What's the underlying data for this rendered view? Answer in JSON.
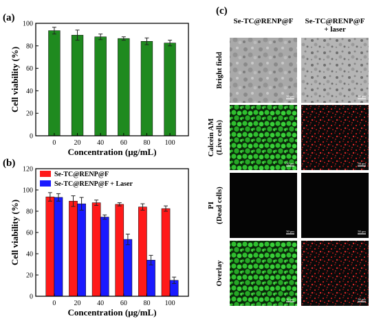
{
  "chart_data": [
    {
      "panel_label": "(a)",
      "type": "bar",
      "xlabel": "Concentration (μg/mL)",
      "ylabel": "Cell viability (%)",
      "ylim": [
        0,
        100
      ],
      "yticks": [
        "0",
        "20",
        "40",
        "60",
        "80",
        "100"
      ],
      "categories": [
        "0",
        "20",
        "40",
        "60",
        "80",
        "100"
      ],
      "series": [
        {
          "values": [
            93.5,
            89.5,
            88,
            86.5,
            84,
            82.5
          ],
          "errors": [
            3,
            4.5,
            2.5,
            1.5,
            3,
            2.5
          ],
          "color": "#1f8a1f"
        }
      ]
    },
    {
      "panel_label": "(b)",
      "type": "bar",
      "xlabel": "Concentration (μg/mL)",
      "ylabel": "Cell viability (%)",
      "ylim": [
        0,
        120
      ],
      "yticks": [
        "0",
        "20",
        "40",
        "60",
        "80",
        "100",
        "120"
      ],
      "categories": [
        "0",
        "20",
        "40",
        "60",
        "80",
        "100"
      ],
      "legend_position": "top-left",
      "series": [
        {
          "name": "Se-TC@RENP@F",
          "values": [
            93.5,
            89.5,
            88,
            86.5,
            84,
            82.5
          ],
          "errors": [
            4,
            5,
            2.5,
            1.5,
            3,
            2.5
          ],
          "color": "#ff1a1a"
        },
        {
          "name": "Se-TC@RENP@F + Laser",
          "values": [
            93,
            87,
            74.5,
            53.5,
            34,
            15
          ],
          "errors": [
            3.5,
            6,
            2,
            5,
            4.5,
            3
          ],
          "color": "#1a1aff"
        }
      ]
    }
  ],
  "panel_c": {
    "label": "(c)",
    "col_headers": [
      [
        "Se-TC@RENP@F"
      ],
      [
        "Se-TC@RENP@F",
        "+ laser"
      ]
    ],
    "row_labels": [
      [
        "Bright field"
      ],
      [
        "Calcein AM",
        "(Live cells)"
      ],
      [
        "PI",
        "(Dead cells)"
      ],
      [
        "Overlay"
      ]
    ],
    "scale_bar_text": "50 μm",
    "tile_kinds": [
      "bright",
      "green",
      "black",
      "green"
    ],
    "tile_kinds_laser": [
      "bright",
      "red",
      "black",
      "red"
    ]
  }
}
